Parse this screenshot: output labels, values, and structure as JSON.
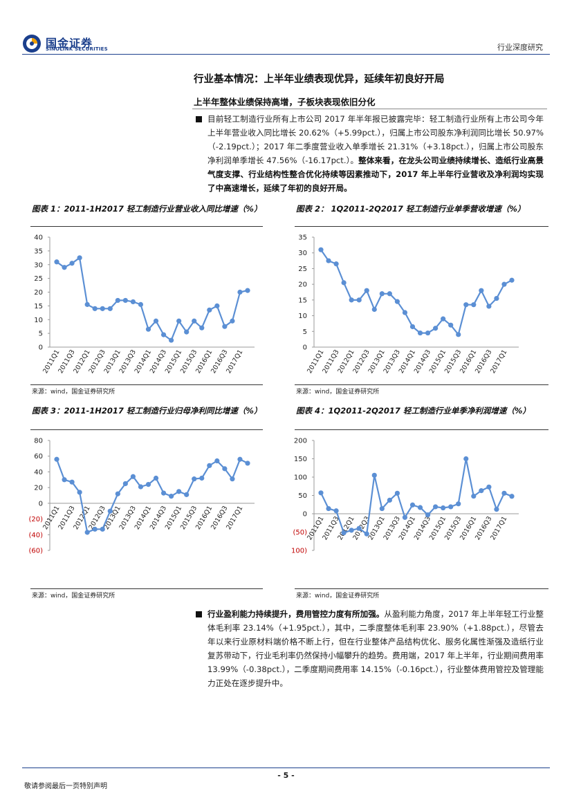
{
  "header": {
    "logo_cn": "国金证券",
    "logo_en": "SINOLINK SECURITIES",
    "doc_type": "行业深度研究"
  },
  "section": {
    "title": "行业基本情况：上半年业绩表现优异，延续年初良好开局",
    "subtitle": "上半年整体业绩保持高增，子板块表现依旧分化"
  },
  "para1": {
    "normal": "目前轻工制造行业所有上市公司 2017 年半年报已披露完毕：轻工制造行业所有上市公司今年上半年营业收入同比增长 20.62%（+5.99pct.），归属上市公司股东净利润同比增长 50.97%（-2.19pct.）；2017 年二季度营业收入单季增长 21.31%（+3.18pct.），归属上市公司股东净利润单季增长 47.56%（-16.17pct.）。",
    "bold": "整体来看，在龙头公司业绩持续增长、造纸行业高景气度支撑、行业结构性整合优化持续等因素推动下，2017 年上半年行业营收及净利润均实现了中高速增长，延续了年初的良好开局。"
  },
  "para2": {
    "bold": "行业盈利能力持续提升，费用管控力度有所加强。",
    "normal": "从盈利能力角度，2017 年上半年轻工行业整体毛利率 23.14%（+1.95pct.），其中，二季度整体毛利率 23.90%（+1.88pct.），尽管去年以来行业原材料端价格不断上行，但在行业整体产品结构优化、服务化属性渐强及造纸行业复苏带动下，行业毛利率仍然保持小幅攀升的趋势。费用端，2017 年上半年，行业期间费用率 13.99%（-0.38pct.），二季度期间费用率 14.15%（-0.16pct.），行业整体费用管控及管理能力正处在逐步提升中。"
  },
  "figures": [
    {
      "title": "图表 1：2011-1H2017 轻工制造行业营业收入同比增速（%）",
      "source": "来源：wind，国金证券研究所"
    },
    {
      "title": "图表 2： 1Q2011-2Q2017 轻工制造行业单季营收增速（%）",
      "source": "来源：wind，国金证券研究所"
    },
    {
      "title": "图表 3：2011-1H2017 轻工制造行业归母净利同比增速（%）",
      "source": "来源：wind，国金证券研究所"
    },
    {
      "title": "图表 4：1Q2011-2Q2017 轻工制造行业单季净利润增速（%）",
      "source": "来源：wind，国金证券研究所"
    }
  ],
  "chart_data": [
    {
      "type": "line",
      "title": "2011-1H2017 轻工制造行业营业收入同比增速（%）",
      "x": [
        "2011Q1",
        "2011Q2",
        "2011Q3",
        "2011Q4",
        "2012Q1",
        "2012Q2",
        "2012Q3",
        "2012Q4",
        "2013Q1",
        "2013Q2",
        "2013Q3",
        "2013Q4",
        "2014Q1",
        "2014Q2",
        "2014Q3",
        "2014Q4",
        "2015Q1",
        "2015Q2",
        "2015Q3",
        "2015Q4",
        "2016Q1",
        "2016Q2",
        "2016Q3",
        "2016Q4",
        "2017Q1",
        "2017Q2"
      ],
      "x_tick_labels": [
        "2011Q1",
        "2011Q3",
        "2012Q1",
        "2012Q3",
        "2013Q1",
        "2013Q3",
        "2014Q1",
        "2014Q3",
        "2015Q1",
        "2015Q3",
        "2016Q1",
        "2016Q3",
        "2017Q1"
      ],
      "values": [
        31,
        29,
        30.5,
        32.5,
        15.5,
        14,
        14,
        14,
        17,
        17,
        16.5,
        15.5,
        6.5,
        9.5,
        4.5,
        2.5,
        9.5,
        5.5,
        9.5,
        7,
        13.5,
        15,
        7.5,
        9.5,
        20,
        20.6
      ],
      "ylim": [
        0,
        40
      ],
      "yticks": [
        "0",
        "5",
        "10",
        "15",
        "20",
        "25",
        "30",
        "35",
        "40"
      ],
      "y_tick_values": [
        0,
        5,
        10,
        15,
        20,
        25,
        30,
        35,
        40
      ]
    },
    {
      "type": "line",
      "title": "1Q2011-2Q2017 轻工制造行业单季营收增速（%）",
      "x": [
        "2011Q1",
        "2011Q2",
        "2011Q3",
        "2011Q4",
        "2012Q1",
        "2012Q2",
        "2012Q3",
        "2012Q4",
        "2013Q1",
        "2013Q2",
        "2013Q3",
        "2013Q4",
        "2014Q1",
        "2014Q2",
        "2014Q3",
        "2014Q4",
        "2015Q1",
        "2015Q2",
        "2015Q3",
        "2015Q4",
        "2016Q1",
        "2016Q2",
        "2016Q3",
        "2016Q4",
        "2017Q1",
        "2017Q2"
      ],
      "x_tick_labels": [
        "2011Q1",
        "2011Q3",
        "2012Q1",
        "2012Q3",
        "2013Q1",
        "2013Q3",
        "2014Q1",
        "2014Q3",
        "2015Q1",
        "2015Q3",
        "2016Q1",
        "2016Q3",
        "2017Q1"
      ],
      "values": [
        31,
        27.5,
        26.5,
        20.5,
        15,
        15,
        18,
        12,
        17,
        17,
        14.5,
        11,
        6.5,
        4.5,
        4.5,
        6,
        9,
        7,
        4,
        13.5,
        13.5,
        18,
        13,
        15.5,
        20,
        21.3
      ],
      "ylim": [
        0,
        35
      ],
      "yticks": [
        "0",
        "5",
        "10",
        "15",
        "20",
        "25",
        "30",
        "35"
      ],
      "y_tick_values": [
        0,
        5,
        10,
        15,
        20,
        25,
        30,
        35
      ]
    },
    {
      "type": "line",
      "title": "2011-1H2017 轻工制造行业归母净利同比增速（%）",
      "x": [
        "2011Q1",
        "2011Q2",
        "2011Q3",
        "2011Q4",
        "2012Q1",
        "2012Q2",
        "2012Q3",
        "2012Q4",
        "2013Q1",
        "2013Q2",
        "2013Q3",
        "2013Q4",
        "2014Q1",
        "2014Q2",
        "2014Q3",
        "2014Q4",
        "2015Q1",
        "2015Q2",
        "2015Q3",
        "2015Q4",
        "2016Q1",
        "2016Q2",
        "2016Q3",
        "2016Q4",
        "2017Q1",
        "2017Q2"
      ],
      "x_tick_labels": [
        "2011Q1",
        "2011Q3",
        "2012Q1",
        "2012Q3",
        "2013Q1",
        "2013Q3",
        "2014Q1",
        "2014Q3",
        "2015Q1",
        "2015Q3",
        "2016Q1",
        "2016Q3",
        "2017Q1"
      ],
      "values": [
        56,
        30,
        27,
        14,
        -37,
        -33,
        -33,
        -10,
        12,
        25,
        34,
        21,
        24,
        32,
        13,
        9,
        15,
        11,
        31,
        32,
        48,
        54,
        44,
        31,
        56,
        51
      ],
      "ylim": [
        -60,
        80
      ],
      "yticks": [
        "(60)",
        "(40)",
        "(20)",
        "0",
        "20",
        "40",
        "60",
        "80"
      ],
      "y_tick_values": [
        -60,
        -40,
        -20,
        0,
        20,
        40,
        60,
        80
      ]
    },
    {
      "type": "line",
      "title": "1Q2011-2Q2017 轻工制造行业单季净利润增速（%）",
      "x": [
        "2011Q1",
        "2011Q2",
        "2011Q3",
        "2011Q4",
        "2012Q1",
        "2012Q2",
        "2012Q3",
        "2012Q4",
        "2013Q1",
        "2013Q2",
        "2013Q3",
        "2013Q4",
        "2014Q1",
        "2014Q2",
        "2014Q3",
        "2014Q4",
        "2015Q1",
        "2015Q2",
        "2015Q3",
        "2015Q4",
        "2016Q1",
        "2016Q2",
        "2016Q3",
        "2016Q4",
        "2017Q1",
        "2017Q2"
      ],
      "x_tick_labels": [
        "2011Q1",
        "2011Q3",
        "2012Q1",
        "2012Q3",
        "2013Q1",
        "2013Q3",
        "2014Q1",
        "2014Q3",
        "2015Q1",
        "2015Q3",
        "2016Q1",
        "2016Q3",
        "2017Q1"
      ],
      "values": [
        57,
        14,
        8,
        -52,
        -45,
        -40,
        -55,
        105,
        14,
        37,
        56,
        -10,
        24,
        17,
        -3,
        19,
        16,
        19,
        27,
        150,
        48,
        63,
        73,
        12,
        56,
        47.6
      ],
      "ylim": [
        -100,
        200
      ],
      "yticks": [
        "(100)",
        "(50)",
        "0",
        "50",
        "100",
        "150",
        "200"
      ],
      "y_tick_values": [
        -100,
        -50,
        0,
        50,
        100,
        150,
        200
      ]
    }
  ],
  "footer": {
    "page": "- 5 -",
    "notice": "敬请参阅最后一页特别声明"
  }
}
